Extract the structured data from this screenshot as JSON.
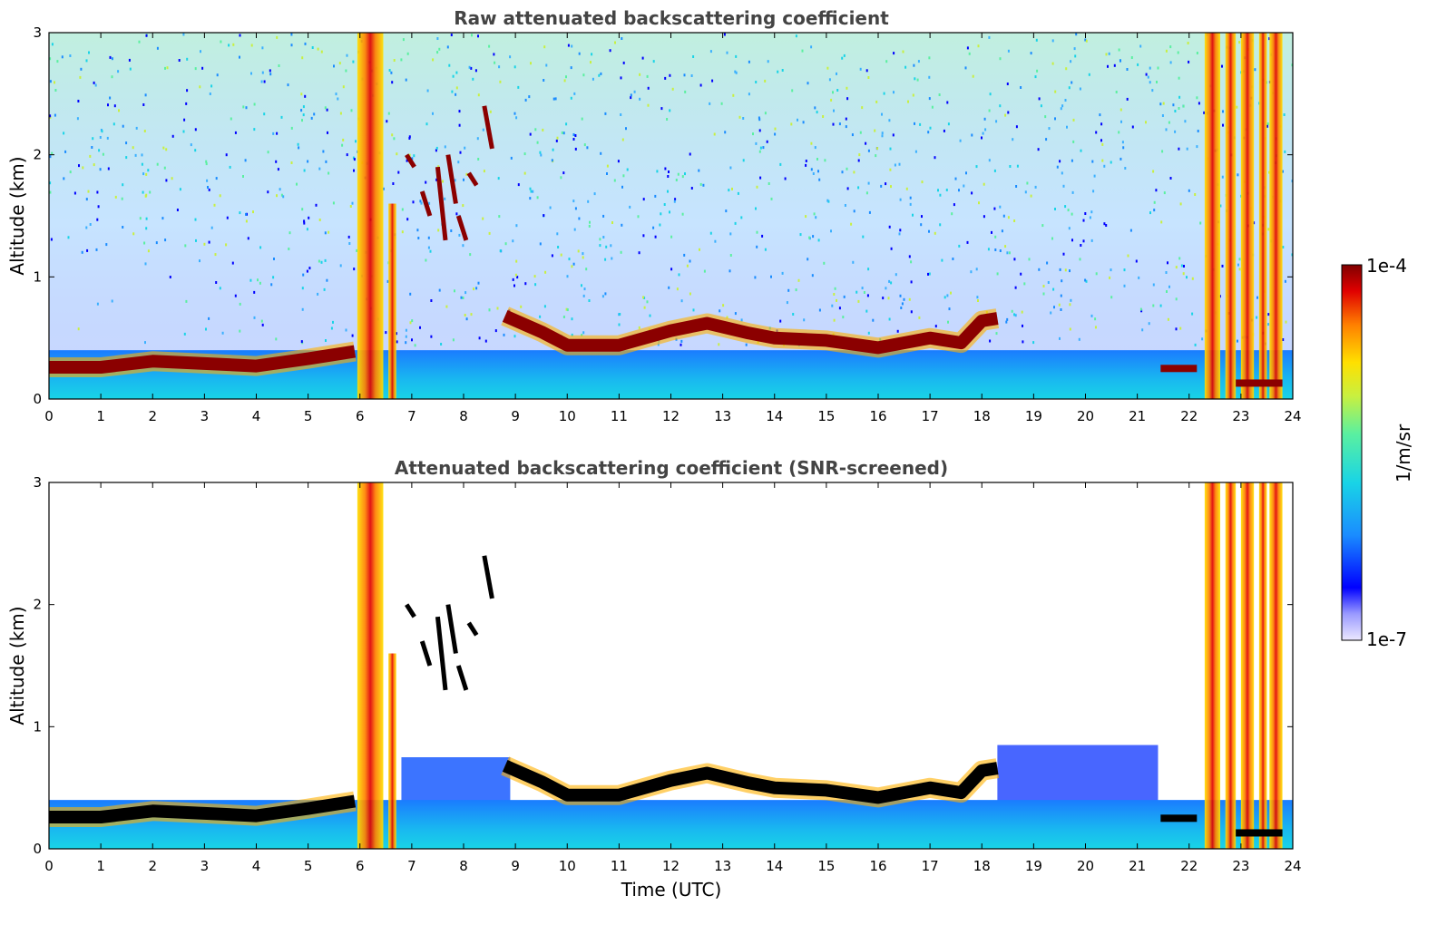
{
  "chart_data": [
    {
      "type": "heatmap",
      "title": "Raw attenuated backscattering coefficient",
      "xlabel": "",
      "ylabel": "Altitude (km)",
      "xlim": [
        0,
        24
      ],
      "ylim": [
        0,
        3
      ],
      "x_ticks": [
        "0",
        "1",
        "2",
        "3",
        "4",
        "5",
        "6",
        "7",
        "8",
        "9",
        "10",
        "11",
        "12",
        "13",
        "14",
        "15",
        "16",
        "17",
        "18",
        "19",
        "20",
        "21",
        "22",
        "23",
        "24"
      ],
      "y_ticks": [
        "0",
        "1",
        "2",
        "3"
      ],
      "screened": false,
      "cloud_base_km": [
        {
          "t": 0,
          "z": 0.26
        },
        {
          "t": 1,
          "z": 0.26
        },
        {
          "t": 2,
          "z": 0.31
        },
        {
          "t": 3,
          "z": 0.29
        },
        {
          "t": 4,
          "z": 0.27
        },
        {
          "t": 5,
          "z": 0.33
        },
        {
          "t": 5.9,
          "z": 0.39
        },
        {
          "t": 8.8,
          "z": 0.68
        },
        {
          "t": 9.5,
          "z": 0.55
        },
        {
          "t": 10,
          "z": 0.44
        },
        {
          "t": 11,
          "z": 0.44
        },
        {
          "t": 12,
          "z": 0.56
        },
        {
          "t": 12.7,
          "z": 0.62
        },
        {
          "t": 13.5,
          "z": 0.54
        },
        {
          "t": 14,
          "z": 0.5
        },
        {
          "t": 15,
          "z": 0.48
        },
        {
          "t": 16,
          "z": 0.42
        },
        {
          "t": 17,
          "z": 0.5
        },
        {
          "t": 17.6,
          "z": 0.46
        },
        {
          "t": 18,
          "z": 0.64
        },
        {
          "t": 18.3,
          "z": 0.66
        }
      ]
    },
    {
      "type": "heatmap",
      "title": "Attenuated backscattering coefficient (SNR-screened)",
      "xlabel": "Time (UTC)",
      "ylabel": "Altitude (km)",
      "xlim": [
        0,
        24
      ],
      "ylim": [
        0,
        3
      ],
      "x_ticks": [
        "0",
        "1",
        "2",
        "3",
        "4",
        "5",
        "6",
        "7",
        "8",
        "9",
        "10",
        "11",
        "12",
        "13",
        "14",
        "15",
        "16",
        "17",
        "18",
        "19",
        "20",
        "21",
        "22",
        "23",
        "24"
      ],
      "y_ticks": [
        "0",
        "1",
        "2",
        "3"
      ],
      "screened": true
    }
  ],
  "colorbar": {
    "label": "1/m/sr",
    "max_label": "1e-4",
    "min_label": "1e-7",
    "scale": "log",
    "range": [
      1e-07,
      0.0001
    ],
    "colors": [
      "#ece8ff",
      "#9a9aff",
      "#0000ff",
      "#1a8cff",
      "#19d4e6",
      "#5af0a0",
      "#c8f040",
      "#ffe000",
      "#ff8000",
      "#e00000",
      "#800000"
    ]
  }
}
